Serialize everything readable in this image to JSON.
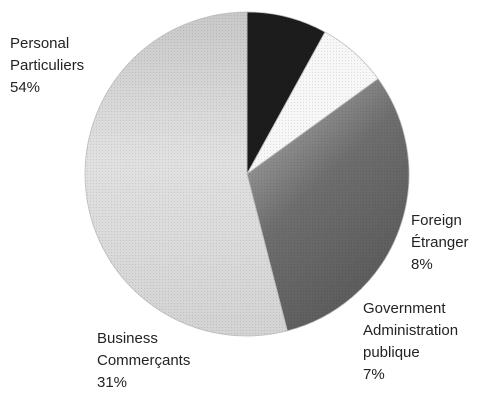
{
  "chart_data": {
    "type": "pie",
    "title": "",
    "start_angle_deg": 90,
    "direction": "clockwise",
    "slices": [
      {
        "label": [
          "Foreign",
          "Étranger"
        ],
        "value": 8,
        "value_label": "8%",
        "color": "#1c1c1c"
      },
      {
        "label": [
          "Government",
          "Administration",
          "publique"
        ],
        "value": 7,
        "value_label": "7%",
        "color": "#f7f7f7"
      },
      {
        "label": [
          "Business",
          "Commerçants"
        ],
        "value": 31,
        "value_label": "31%",
        "color": "#6d6d6d"
      },
      {
        "label": [
          "Personal",
          "Particuliers"
        ],
        "value": 54,
        "value_label": "54%",
        "color": "#d6d6d6"
      }
    ]
  }
}
